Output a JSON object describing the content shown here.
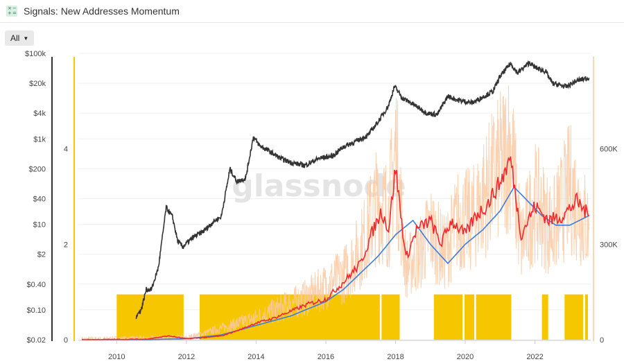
{
  "header": {
    "title": "Signals: New Addresses Momentum",
    "icon": "signals-icon"
  },
  "filter": {
    "label": "All"
  },
  "watermark": "glassnode",
  "colors": {
    "price": "#333333",
    "signal": "#f6c700",
    "raw": "#f9c9a3",
    "short_ma": "#f0282d",
    "long_ma": "#3a7de0",
    "left_axis": "#333333",
    "mid_axis": "#f6c700",
    "right_axis": "#fbd5b5"
  },
  "chart_data": {
    "type": "line",
    "x_ticks": [
      "2010",
      "2012",
      "2014",
      "2016",
      "2018",
      "2020",
      "2022"
    ],
    "x_range": [
      2008.9,
      2023.6
    ],
    "price_axis": {
      "scale": "log",
      "ticks": [
        "$0.02",
        "$0.10",
        "$0.40",
        "$2",
        "$10",
        "$40",
        "$200",
        "$1k",
        "$4k",
        "$20k",
        "$100k"
      ],
      "tick_values": [
        0.02,
        0.1,
        0.4,
        2,
        10,
        40,
        200,
        1000,
        4000,
        20000,
        100000
      ]
    },
    "signal_axis": {
      "ticks": [
        "0",
        "2",
        "4"
      ],
      "tick_values": [
        0,
        2,
        4
      ],
      "range": [
        0,
        6
      ]
    },
    "addresses_axis": {
      "ticks": [
        "0",
        "300K",
        "600K"
      ],
      "tick_values": [
        0,
        300000,
        600000
      ],
      "range": [
        0,
        900000
      ]
    },
    "series": [
      {
        "key": "price",
        "x": [
          2010.55,
          2010.7,
          2010.85,
          2011.0,
          2011.2,
          2011.42,
          2011.6,
          2011.75,
          2011.9,
          2012.2,
          2012.5,
          2012.8,
          2013.0,
          2013.25,
          2013.45,
          2013.7,
          2013.92,
          2014.1,
          2014.4,
          2014.7,
          2015.0,
          2015.4,
          2015.8,
          2016.2,
          2016.5,
          2016.9,
          2017.2,
          2017.5,
          2017.8,
          2017.97,
          2018.2,
          2018.5,
          2018.9,
          2019.2,
          2019.5,
          2019.8,
          2020.2,
          2020.5,
          2020.8,
          2021.0,
          2021.3,
          2021.5,
          2021.85,
          2022.0,
          2022.3,
          2022.5,
          2022.9,
          2023.2,
          2023.55
        ],
        "values": [
          0.07,
          0.1,
          0.3,
          0.3,
          1.0,
          25,
          15,
          4,
          3,
          5,
          7,
          12,
          15,
          200,
          100,
          120,
          1100,
          700,
          500,
          350,
          280,
          240,
          350,
          400,
          650,
          900,
          1200,
          2500,
          6000,
          17000,
          9000,
          6500,
          4000,
          3700,
          10000,
          8000,
          7000,
          9500,
          13000,
          29000,
          58000,
          35000,
          61000,
          47000,
          38000,
          20000,
          16500,
          23000,
          27000
        ]
      },
      {
        "key": "short_ma",
        "x": [
          2009.0,
          2010.8,
          2011.5,
          2012.0,
          2012.6,
          2013.0,
          2013.5,
          2014.0,
          2014.5,
          2015.0,
          2015.5,
          2016.0,
          2016.5,
          2017.0,
          2017.3,
          2017.6,
          2017.8,
          2018.0,
          2018.3,
          2018.6,
          2019.0,
          2019.3,
          2019.6,
          2020.0,
          2020.3,
          2020.6,
          2021.0,
          2021.3,
          2021.6,
          2022.0,
          2022.4,
          2022.8,
          2023.2,
          2023.55
        ],
        "values": [
          0,
          0.01,
          0.08,
          0.02,
          0.05,
          0.08,
          0.2,
          0.35,
          0.45,
          0.6,
          0.75,
          0.85,
          1.2,
          1.6,
          2.2,
          2.7,
          2.3,
          3.6,
          1.7,
          2.3,
          2.5,
          2.0,
          2.5,
          2.2,
          2.6,
          2.8,
          3.3,
          3.8,
          2.2,
          2.8,
          2.5,
          2.6,
          2.9,
          2.6
        ]
      },
      {
        "key": "long_ma",
        "x": [
          2009.0,
          2011.0,
          2012.0,
          2013.0,
          2014.0,
          2015.0,
          2016.0,
          2016.5,
          2017.0,
          2017.5,
          2018.0,
          2018.5,
          2019.0,
          2019.5,
          2020.0,
          2020.5,
          2021.0,
          2021.4,
          2021.8,
          2022.2,
          2022.6,
          2023.0,
          2023.55
        ],
        "values": [
          0,
          0.005,
          0.02,
          0.1,
          0.3,
          0.5,
          0.8,
          1.05,
          1.4,
          1.75,
          2.2,
          2.5,
          2.0,
          1.6,
          2.0,
          2.3,
          2.7,
          3.2,
          2.9,
          2.6,
          2.4,
          2.4,
          2.6
        ]
      },
      {
        "key": "raw",
        "x": [
          2009.0,
          2012.0,
          2014.0,
          2015.5,
          2016.5,
          2017.0,
          2017.5,
          2017.8,
          2018.0,
          2018.3,
          2018.7,
          2019.0,
          2019.4,
          2019.8,
          2020.2,
          2020.6,
          2021.0,
          2021.3,
          2021.6,
          2022.0,
          2022.5,
          2023.0,
          2023.55
        ],
        "values": [
          0,
          0.03,
          0.45,
          0.9,
          1.35,
          1.9,
          2.9,
          2.6,
          4.0,
          1.5,
          1.8,
          2.3,
          1.8,
          2.5,
          2.5,
          3.1,
          3.6,
          4.1,
          2.0,
          2.9,
          2.3,
          3.2,
          2.3
        ]
      }
    ],
    "signal_periods": [
      [
        2010.0,
        2011.92
      ],
      [
        2012.38,
        2017.55
      ],
      [
        2017.6,
        2018.12
      ],
      [
        2019.1,
        2019.92
      ],
      [
        2019.98,
        2020.26
      ],
      [
        2020.31,
        2021.32
      ],
      [
        2022.2,
        2022.38
      ],
      [
        2022.85,
        2023.38
      ],
      [
        2023.44,
        2023.52
      ]
    ]
  }
}
